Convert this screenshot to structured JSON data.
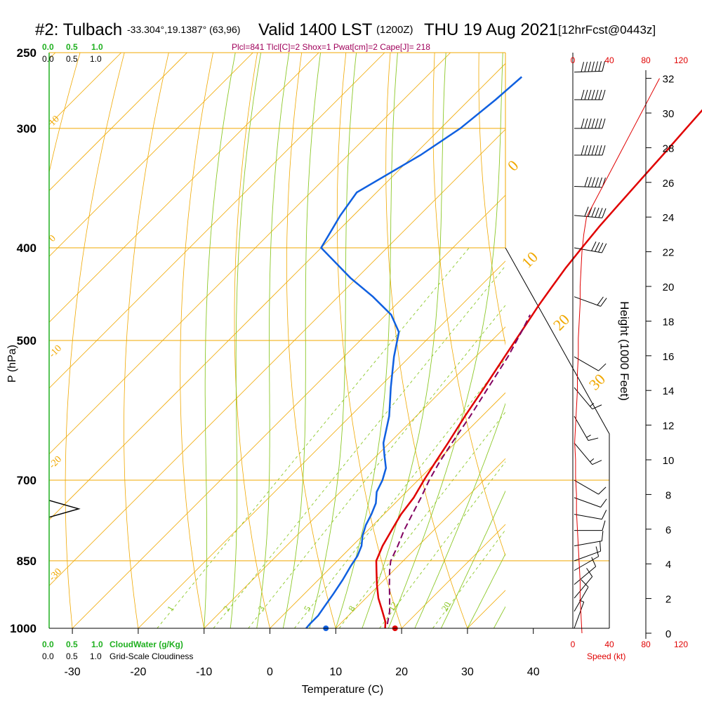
{
  "header": {
    "station": "#2: Tulbach",
    "coords": "-33.304°,19.1387° (63,96)",
    "valid": "Valid 1400 LST",
    "zulu": "(1200Z)",
    "date": "THU 19 Aug 2021",
    "forecast": "[12hrFcst@0443z]",
    "indices": "Plcl=841 Tlcl[C]=2 Shox=1 Pwat[cm]=2 Cape[J]= 218"
  },
  "legend": {
    "cloudwater_ticks": [
      "0.0",
      "0.5",
      "1.0"
    ],
    "cloudiness_ticks": [
      "0.0",
      "0.5",
      "1.0"
    ],
    "cloudwater_label": "CloudWater (g/Kg)",
    "cloudiness_label": "Grid-Scale Cloudiness"
  },
  "speed_axis": {
    "ticks": [
      "0",
      "40",
      "80",
      "120"
    ],
    "label": "Speed (kt)"
  },
  "colors": {
    "isobar": "#f0a800",
    "dry_adiabat": "#f0a800",
    "moist_adiabat": "#8cc828",
    "mixing_ratio": "#8cc828",
    "temperature": "#e00000",
    "dewpoint": "#1060e0",
    "parcel": "#800060",
    "cloud": "#20a020",
    "speed": "#e00000",
    "barb": "#000000"
  },
  "chart_data": {
    "type": "line",
    "subtype": "skew-T log-P sounding",
    "xlabel": "Temperature (C)",
    "ylabel": "P (hPa)",
    "y2label": "Height (1000 Feet)",
    "x_ticks": [
      -30,
      -20,
      -10,
      0,
      10,
      20,
      30,
      40
    ],
    "xlim": [
      -34.5,
      46
    ],
    "p_ticks": [
      250,
      300,
      400,
      500,
      700,
      850,
      1000
    ],
    "ylim_hpa": [
      1000,
      250
    ],
    "y_scale": "log",
    "height_ticks": [
      0,
      2,
      4,
      6,
      8,
      10,
      12,
      14,
      16,
      18,
      20,
      22,
      24,
      26,
      28,
      30,
      32
    ],
    "dry_adiabat_labels": [
      {
        "label": "10"
      },
      {
        "label": "0"
      },
      {
        "label": "-10"
      },
      {
        "label": "-20"
      },
      {
        "label": "-30"
      },
      {
        "label": "0"
      },
      {
        "label": "10"
      },
      {
        "label": "20"
      },
      {
        "label": "30"
      }
    ],
    "mixing_ratio_labels": [
      "1",
      "2",
      "3",
      "5",
      "8",
      "12",
      "20"
    ],
    "series": [
      {
        "name": "Temperature",
        "p": [
          1000,
          985,
          960,
          930,
          900,
          870,
          850,
          820,
          790,
          760,
          730,
          700,
          670,
          640,
          600,
          560,
          520,
          480,
          460,
          440,
          420,
          400,
          380,
          360,
          340,
          320,
          300,
          280,
          265
        ],
        "t": [
          17.5,
          16.6,
          14.5,
          11.9,
          9.6,
          7.4,
          5.9,
          4.6,
          3.6,
          2.6,
          2.0,
          0.9,
          -0.1,
          -1.1,
          -2.6,
          -4.0,
          -5.6,
          -7.3,
          -8.2,
          -9.0,
          -9.8,
          -10.4,
          -11.0,
          -11.4,
          -11.8,
          -12.2,
          -12.7,
          -13.2,
          -13.6
        ]
      },
      {
        "name": "Dewpoint",
        "p": [
          1000,
          990,
          970,
          950,
          920,
          890,
          860,
          840,
          820,
          800,
          780,
          760,
          740,
          720,
          700,
          680,
          660,
          640,
          600,
          560,
          520,
          490,
          470,
          450,
          430,
          400,
          370,
          350,
          320,
          300,
          280,
          265
        ],
        "t": [
          5.5,
          5.4,
          5.4,
          5.0,
          4.4,
          3.7,
          2.8,
          2.3,
          1.4,
          0.0,
          -1.1,
          -1.9,
          -2.9,
          -4.5,
          -5.4,
          -6.7,
          -8.8,
          -10.9,
          -14.1,
          -18.2,
          -22.4,
          -25.4,
          -29.2,
          -34.7,
          -41.0,
          -50.0,
          -52.0,
          -53.0,
          -49.0,
          -47.0,
          -46.0,
          -45.5
        ]
      },
      {
        "name": "Parcel",
        "p": [
          990,
          960,
          930,
          900,
          870,
          850,
          820,
          790,
          760,
          730,
          700,
          670,
          640,
          600,
          560,
          520,
          490,
          470
        ],
        "t": [
          17.2,
          15.6,
          13.6,
          11.5,
          9.4,
          8.1,
          6.9,
          5.5,
          4.3,
          3.1,
          1.7,
          0.5,
          -0.5,
          -1.8,
          -3.4,
          -5.1,
          -6.8,
          -8.1
        ]
      }
    ],
    "surface_temperature": 19,
    "surface_dewpoint": 8.5,
    "wind_speed_profile_kt": {
      "height_kft": [
        0,
        1,
        2,
        3,
        4,
        5,
        6,
        7,
        8,
        9,
        10,
        11,
        12,
        13,
        14,
        15,
        16,
        17,
        18,
        19,
        20,
        21,
        22,
        23,
        24,
        25,
        26,
        27,
        28,
        29,
        30,
        31,
        32
      ],
      "speed": [
        10,
        9,
        8,
        8,
        7,
        6,
        5,
        4,
        4,
        3,
        3,
        2,
        3,
        4,
        5,
        5,
        6,
        6,
        7,
        8,
        8,
        9,
        10,
        12,
        15,
        25,
        35,
        45,
        55,
        65,
        75,
        85,
        95
      ]
    },
    "wind_barbs": [
      {
        "p": 1000,
        "dir": 200,
        "speed": 5
      },
      {
        "p": 960,
        "dir": 210,
        "speed": 10
      },
      {
        "p": 930,
        "dir": 220,
        "speed": 10
      },
      {
        "p": 900,
        "dir": 230,
        "speed": 10
      },
      {
        "p": 870,
        "dir": 240,
        "speed": 10
      },
      {
        "p": 850,
        "dir": 250,
        "speed": 10
      },
      {
        "p": 820,
        "dir": 260,
        "speed": 10
      },
      {
        "p": 790,
        "dir": 270,
        "speed": 10
      },
      {
        "p": 760,
        "dir": 280,
        "speed": 10
      },
      {
        "p": 730,
        "dir": 290,
        "speed": 10
      },
      {
        "p": 700,
        "dir": 300,
        "speed": 10
      },
      {
        "p": 640,
        "dir": 320,
        "speed": 15
      },
      {
        "p": 600,
        "dir": 330,
        "speed": 15
      },
      {
        "p": 560,
        "dir": 320,
        "speed": 15
      },
      {
        "p": 520,
        "dir": 300,
        "speed": 10
      },
      {
        "p": 450,
        "dir": 290,
        "speed": 20
      },
      {
        "p": 400,
        "dir": 280,
        "speed": 40
      },
      {
        "p": 370,
        "dir": 275,
        "speed": 60
      },
      {
        "p": 345,
        "dir": 272,
        "speed": 60
      },
      {
        "p": 320,
        "dir": 270,
        "speed": 70
      },
      {
        "p": 300,
        "dir": 270,
        "speed": 70
      },
      {
        "p": 280,
        "dir": 270,
        "speed": 70
      },
      {
        "p": 262,
        "dir": 268,
        "speed": 70
      }
    ]
  }
}
